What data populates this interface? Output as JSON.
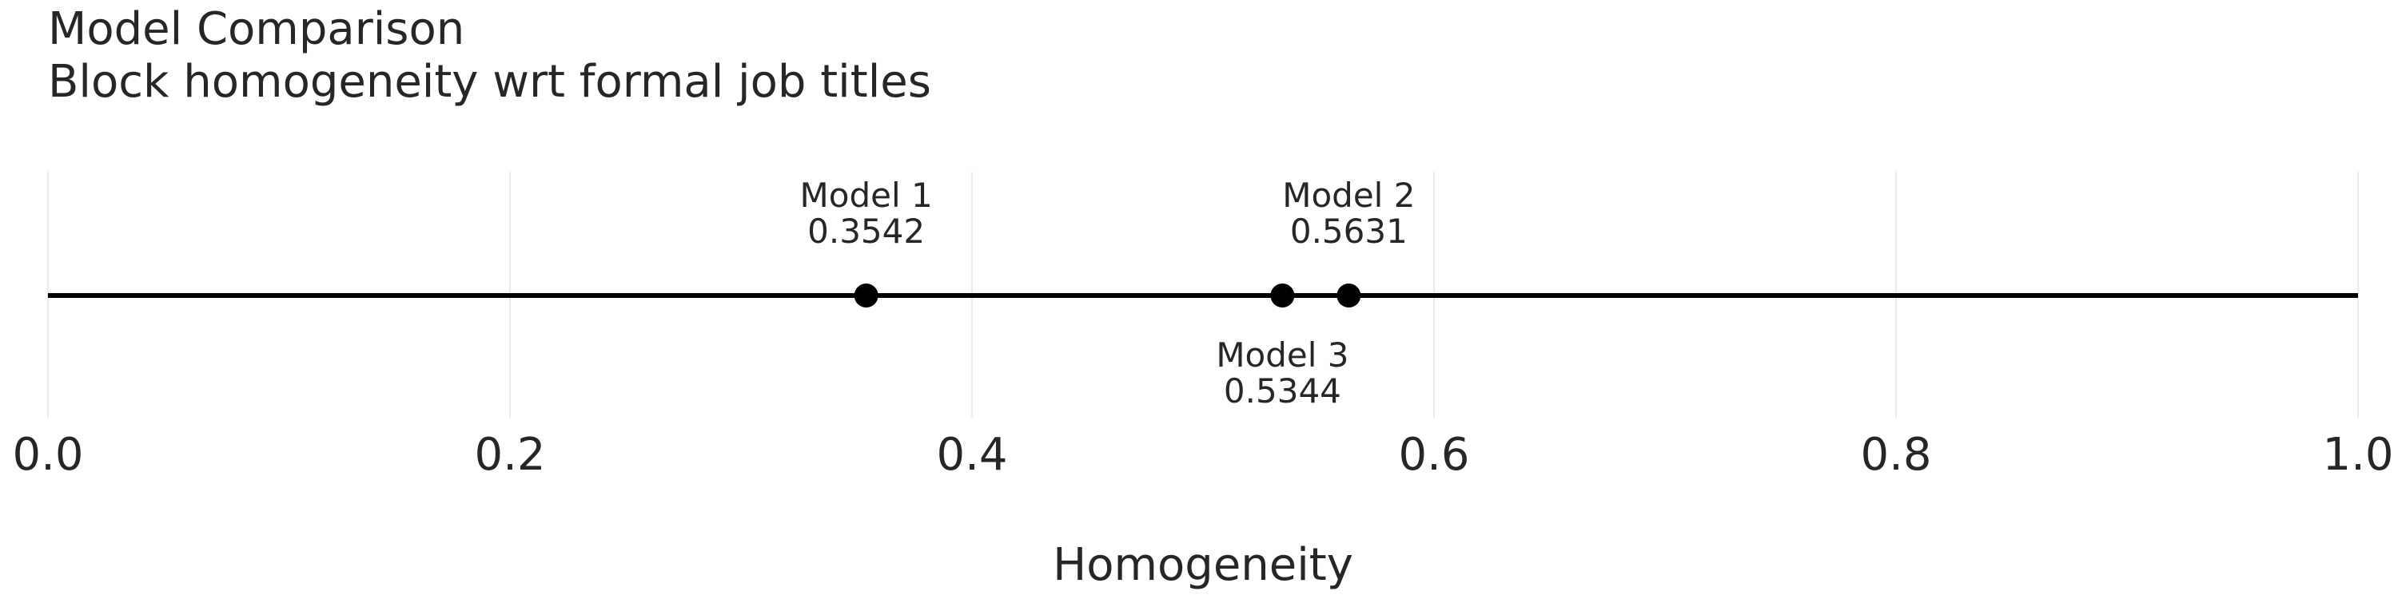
{
  "chart_data": {
    "type": "scatter",
    "title": "Model Comparison",
    "subtitle": "Block homogeneity wrt formal job titles",
    "xlabel": "Homogeneity",
    "ylabel": "",
    "xlim": [
      0.0,
      1.0
    ],
    "xticks": [
      0.0,
      0.2,
      0.4,
      0.6,
      0.8,
      1.0
    ],
    "xtick_labels": [
      "0.0",
      "0.2",
      "0.4",
      "0.6",
      "0.8",
      "1.0"
    ],
    "grid": true,
    "points": [
      {
        "name": "Model 1",
        "x": 0.3542,
        "value_label": "0.3542",
        "label_position": "above"
      },
      {
        "name": "Model 2",
        "x": 0.5631,
        "value_label": "0.5631",
        "label_position": "above"
      },
      {
        "name": "Model 3",
        "x": 0.5344,
        "value_label": "0.5344",
        "label_position": "below"
      }
    ],
    "colors": {
      "line": "#000000",
      "points": "#000000",
      "grid": "#ebebeb",
      "text": "#262626"
    }
  }
}
